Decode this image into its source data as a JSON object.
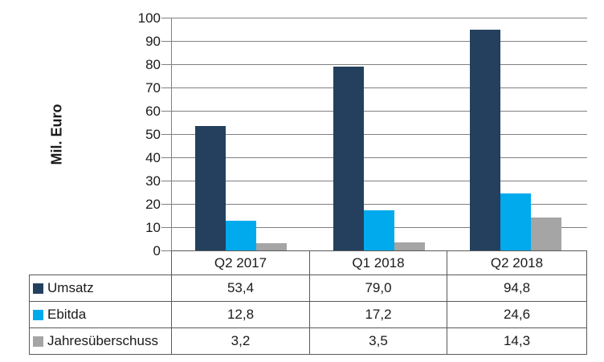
{
  "chart_data": {
    "type": "bar",
    "title": "",
    "ylabel": "Mil. Euro",
    "xlabel": "",
    "ylim": [
      0,
      100
    ],
    "ytick_step": 10,
    "ytick_labels": [
      "100",
      "90",
      "80",
      "70",
      "60",
      "50",
      "40",
      "30",
      "20",
      "10",
      "0"
    ],
    "grid": true,
    "legend_position": "table-left",
    "categories": [
      "Q2 2017",
      "Q1 2018",
      "Q2 2018"
    ],
    "series": [
      {
        "name": "Umsatz",
        "color": "#24405E",
        "values": [
          53.4,
          79.0,
          94.8
        ],
        "display": [
          "53,4",
          "79,0",
          "94,8"
        ]
      },
      {
        "name": "Ebitda",
        "color": "#00AAEC",
        "values": [
          12.8,
          17.2,
          24.6
        ],
        "display": [
          "12,8",
          "17,2",
          "24,6"
        ]
      },
      {
        "name": "Jahresüberschuss",
        "color": "#A5A5A5",
        "values": [
          3.2,
          3.5,
          14.3
        ],
        "display": [
          "3,2",
          "3,5",
          "14,3"
        ]
      }
    ]
  },
  "colors": {
    "gridline": "#808080",
    "axis": "#808080",
    "table_border": "#595959",
    "text": "#1A1A1A"
  }
}
